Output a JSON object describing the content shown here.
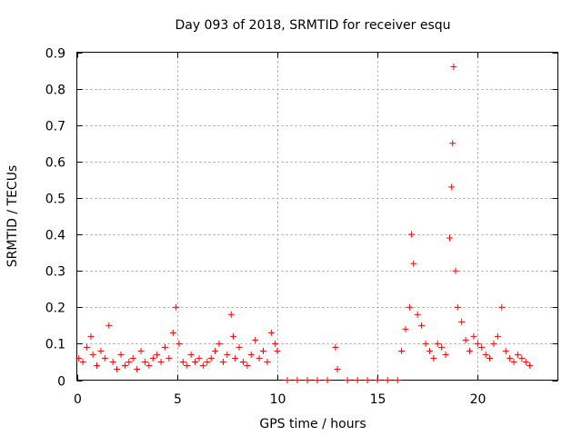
{
  "chart_data": {
    "type": "scatter",
    "title": "Day 093 of 2018, SRMTID for receiver esqu",
    "xlabel": "GPS time / hours",
    "ylabel": "SRMTID / TECUs",
    "xlim": [
      0,
      24
    ],
    "ylim": [
      0,
      0.9
    ],
    "xticks": [
      0,
      5,
      10,
      15,
      20
    ],
    "yticks": [
      0,
      0.1,
      0.2,
      0.3,
      0.4,
      0.5,
      0.6,
      0.7,
      0.8,
      0.9
    ],
    "grid": true,
    "marker": "+",
    "color": "#ff0000",
    "series": [
      {
        "name": "SRMTID",
        "x": [
          0.1,
          0.3,
          0.5,
          0.7,
          0.8,
          1.0,
          1.2,
          1.4,
          1.6,
          1.8,
          2.0,
          2.2,
          2.4,
          2.6,
          2.8,
          3.0,
          3.2,
          3.4,
          3.6,
          3.8,
          4.0,
          4.2,
          4.4,
          4.6,
          4.8,
          4.95,
          5.1,
          5.3,
          5.5,
          5.7,
          5.9,
          6.1,
          6.3,
          6.5,
          6.7,
          6.9,
          7.1,
          7.3,
          7.5,
          7.7,
          7.8,
          7.9,
          8.1,
          8.3,
          8.5,
          8.7,
          8.9,
          9.1,
          9.3,
          9.5,
          9.7,
          9.9,
          10.0,
          10.5,
          11.0,
          11.5,
          12.0,
          12.5,
          12.9,
          13.0,
          13.5,
          14.0,
          14.5,
          15.0,
          15.5,
          16.0,
          16.2,
          16.4,
          16.6,
          16.7,
          16.8,
          17.0,
          17.2,
          17.4,
          17.6,
          17.8,
          18.0,
          18.2,
          18.4,
          18.6,
          18.7,
          18.75,
          18.8,
          18.9,
          19.0,
          19.2,
          19.4,
          19.6,
          19.8,
          20.0,
          20.2,
          20.4,
          20.6,
          20.8,
          21.0,
          21.2,
          21.4,
          21.6,
          21.8,
          22.0,
          22.2,
          22.4,
          22.6
        ],
        "y": [
          0.06,
          0.05,
          0.09,
          0.12,
          0.07,
          0.04,
          0.08,
          0.06,
          0.15,
          0.05,
          0.03,
          0.07,
          0.04,
          0.05,
          0.06,
          0.03,
          0.08,
          0.05,
          0.04,
          0.06,
          0.07,
          0.05,
          0.09,
          0.06,
          0.13,
          0.2,
          0.1,
          0.05,
          0.04,
          0.07,
          0.05,
          0.06,
          0.04,
          0.05,
          0.06,
          0.08,
          0.1,
          0.05,
          0.07,
          0.18,
          0.12,
          0.06,
          0.09,
          0.05,
          0.04,
          0.07,
          0.11,
          0.06,
          0.08,
          0.05,
          0.13,
          0.1,
          0.08,
          0.0,
          0.0,
          0.0,
          0.0,
          0.0,
          0.09,
          0.03,
          0.0,
          0.0,
          0.0,
          0.0,
          0.0,
          0.0,
          0.08,
          0.14,
          0.2,
          0.4,
          0.32,
          0.18,
          0.15,
          0.1,
          0.08,
          0.06,
          0.1,
          0.09,
          0.07,
          0.39,
          0.53,
          0.65,
          0.86,
          0.3,
          0.2,
          0.16,
          0.11,
          0.08,
          0.12,
          0.1,
          0.09,
          0.07,
          0.06,
          0.1,
          0.12,
          0.2,
          0.08,
          0.06,
          0.05,
          0.07,
          0.06,
          0.05,
          0.04
        ]
      }
    ]
  }
}
